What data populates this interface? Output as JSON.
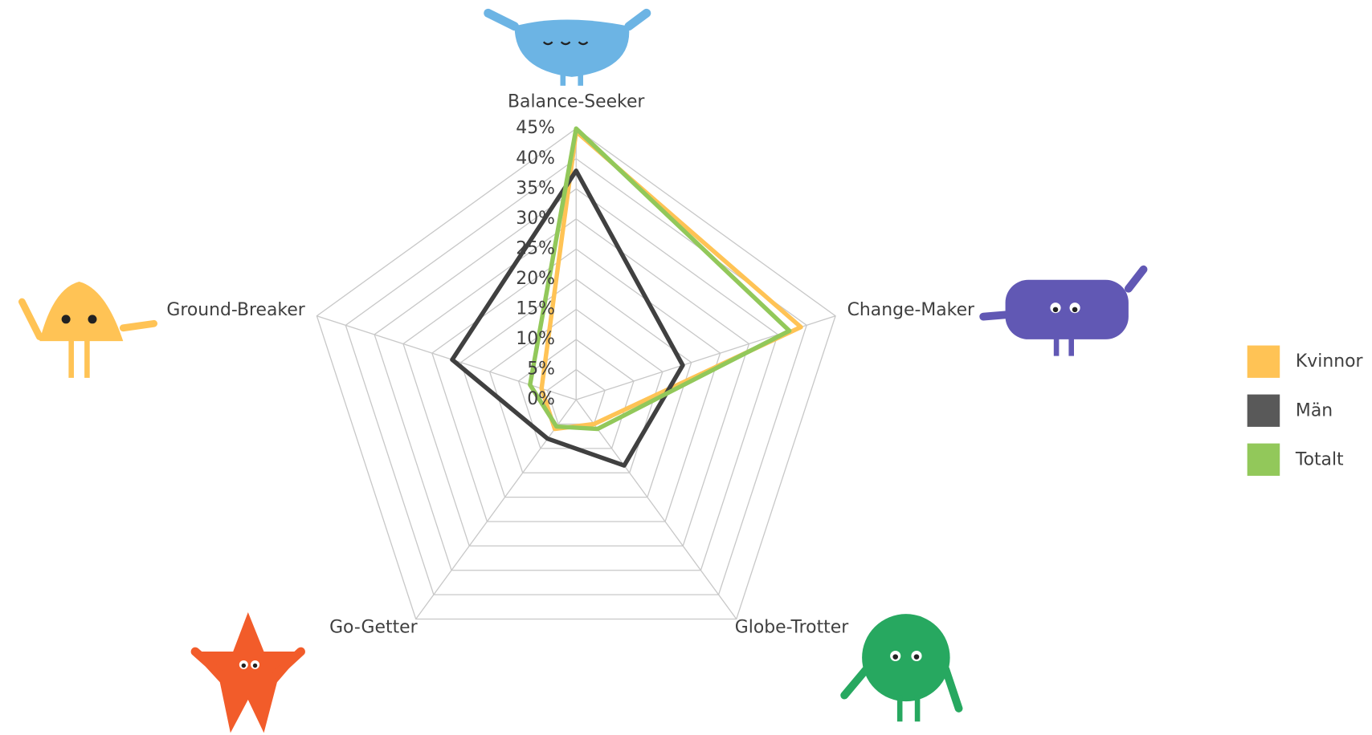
{
  "chart_data": {
    "type": "radar",
    "categories": [
      "Balance-Seeker",
      "Change-Maker",
      "Globe-Trotter",
      "Go-Getter",
      "Ground-Breaker"
    ],
    "series": [
      {
        "name": "Kvinnor",
        "color": "#FFC355",
        "values": [
          44.5,
          39,
          5,
          6,
          6
        ]
      },
      {
        "name": "Män",
        "color": "#404040",
        "legend_color": "#595959",
        "values": [
          38,
          18.5,
          13.5,
          8,
          21.5
        ]
      },
      {
        "name": "Totalt",
        "color": "#92C85A",
        "values": [
          45,
          37,
          6,
          5.5,
          8
        ]
      }
    ],
    "ylim": [
      0,
      45
    ],
    "yticks": [
      {
        "value": 0,
        "label": "0%"
      },
      {
        "value": 5,
        "label": "5%"
      },
      {
        "value": 10,
        "label": "10%"
      },
      {
        "value": 15,
        "label": "15%"
      },
      {
        "value": 20,
        "label": "20%"
      },
      {
        "value": 25,
        "label": "25%"
      },
      {
        "value": 30,
        "label": "30%"
      },
      {
        "value": 35,
        "label": "35%"
      },
      {
        "value": 40,
        "label": "40%"
      },
      {
        "value": 45,
        "label": "45%"
      }
    ],
    "grid": true,
    "legend": "right"
  }
}
